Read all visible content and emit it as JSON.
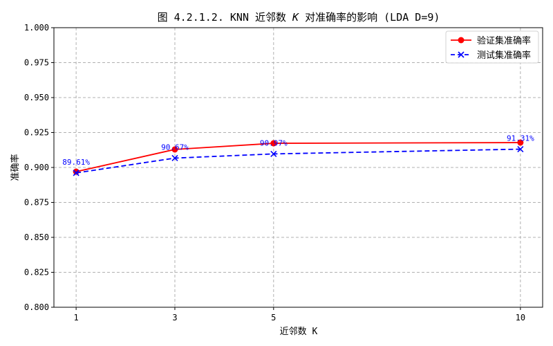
{
  "chart_data": {
    "type": "line",
    "title": "图 4.2.1.2. KNN 近邻数 K 对准确率的影响 (LDA D=9)",
    "title_parts": {
      "pre": "图 4.2.1.2. KNN 近邻数 ",
      "italic": "K",
      "post": " 对准确率的影响 (LDA D=9)"
    },
    "xlabel": "近邻数 K",
    "ylabel": "准确率",
    "x": [
      1,
      3,
      5,
      10
    ],
    "xticks": [
      "1",
      "3",
      "5",
      "10"
    ],
    "yticks": [
      "0.800",
      "0.825",
      "0.850",
      "0.875",
      "0.900",
      "0.925",
      "0.950",
      "0.975",
      "1.000"
    ],
    "ylim": [
      0.8,
      1.0
    ],
    "xlim": [
      0.55,
      10.45
    ],
    "grid": true,
    "legend_position": "top-right",
    "series": [
      {
        "name": "验证集准确率",
        "values": [
          0.897,
          0.9129,
          0.9173,
          0.9178
        ],
        "color": "#ff0000",
        "style": "solid",
        "marker": "circle"
      },
      {
        "name": "测试集准确率",
        "values": [
          0.8961,
          0.9067,
          0.9097,
          0.9131
        ],
        "color": "#0000ff",
        "style": "dashed",
        "marker": "x"
      }
    ],
    "annotations": [
      "89.61%",
      "90.67%",
      "90.97%",
      "91.31%"
    ],
    "annotation_color": "#0000ff"
  }
}
